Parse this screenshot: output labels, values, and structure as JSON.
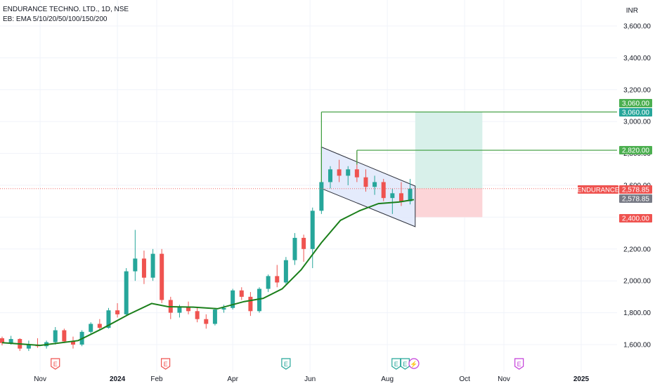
{
  "header": {
    "symbol_line": "ENDURANCE TECHNO. LTD., 1D, NSE",
    "indicator_line": "EB: EMA 5/10/20/50/100/150/200",
    "currency": "INR"
  },
  "colors": {
    "up": "#26a69a",
    "down": "#ef5350",
    "ema": "#1b7f1b",
    "target_line": "#3a9b3a",
    "channel_fill": "#dfe7fb",
    "channel_stroke": "#2a2e39",
    "profit_zone": "#d8f0ea",
    "loss_zone": "#fcd5d8",
    "earnings_red": "#ef5350",
    "earnings_teal": "#26a69a",
    "earnings_purple": "#c43ed9"
  },
  "chart_data": {
    "type": "candlestick",
    "symbol": "ENDURANCE",
    "timeframe": "1D",
    "exchange": "NSE",
    "currency": "INR",
    "ylim": [
      1500,
      3700
    ],
    "y_ticks": [
      "1,600.00",
      "1,800.00",
      "2,000.00",
      "2,200.00",
      "2,400.00",
      "2,600.00",
      "2,800.00",
      "3,000.00",
      "3,200.00",
      "3,400.00",
      "3,600.00"
    ],
    "y_tick_values": [
      1600,
      1800,
      2000,
      2200,
      2400,
      2600,
      2800,
      3000,
      3200,
      3400,
      3600
    ],
    "x_ticks": [
      "Nov",
      "2024",
      "Feb",
      "Apr",
      "Jun",
      "Aug",
      "Oct",
      "Nov",
      "2025"
    ],
    "x_tick_dates": [
      "2023-11-01",
      "2024-01-01",
      "2024-02-01",
      "2024-04-01",
      "2024-06-01",
      "2024-08-01",
      "2024-10-01",
      "2024-11-01",
      "2025-01-01"
    ],
    "series": [
      {
        "name": "EMA",
        "type": "line",
        "points": [
          [
            "2023-10-02",
            1612
          ],
          [
            "2023-11-01",
            1595
          ],
          [
            "2023-12-01",
            1625
          ],
          [
            "2023-12-20",
            1700
          ],
          [
            "2024-01-10",
            1790
          ],
          [
            "2024-01-28",
            1858
          ],
          [
            "2024-02-10",
            1838
          ],
          [
            "2024-03-01",
            1835
          ],
          [
            "2024-03-20",
            1825
          ],
          [
            "2024-04-10",
            1870
          ],
          [
            "2024-04-25",
            1890
          ],
          [
            "2024-05-10",
            1950
          ],
          [
            "2024-05-25",
            2070
          ],
          [
            "2024-06-10",
            2240
          ],
          [
            "2024-06-25",
            2380
          ],
          [
            "2024-07-10",
            2440
          ],
          [
            "2024-07-25",
            2485
          ],
          [
            "2024-08-10",
            2495
          ],
          [
            "2024-08-22",
            2510
          ]
        ]
      }
    ],
    "candles": [
      [
        "2023-10-02",
        1640,
        1650,
        1595,
        1610
      ],
      [
        "2023-10-09",
        1610,
        1655,
        1600,
        1635
      ],
      [
        "2023-10-16",
        1635,
        1640,
        1560,
        1575
      ],
      [
        "2023-10-23",
        1575,
        1625,
        1560,
        1600
      ],
      [
        "2023-10-30",
        1600,
        1640,
        1580,
        1590
      ],
      [
        "2023-11-06",
        1590,
        1625,
        1575,
        1615
      ],
      [
        "2023-11-13",
        1615,
        1710,
        1600,
        1690
      ],
      [
        "2023-11-20",
        1690,
        1700,
        1610,
        1620
      ],
      [
        "2023-11-27",
        1620,
        1650,
        1575,
        1600
      ],
      [
        "2023-12-04",
        1600,
        1690,
        1590,
        1680
      ],
      [
        "2023-12-11",
        1680,
        1740,
        1670,
        1730
      ],
      [
        "2023-12-18",
        1730,
        1760,
        1690,
        1705
      ],
      [
        "2023-12-25",
        1705,
        1830,
        1700,
        1815
      ],
      [
        "2024-01-01",
        1815,
        1860,
        1770,
        1790
      ],
      [
        "2024-01-08",
        1790,
        2080,
        1780,
        2060
      ],
      [
        "2024-01-15",
        2060,
        2320,
        2000,
        2140
      ],
      [
        "2024-01-22",
        2140,
        2190,
        1980,
        2020
      ],
      [
        "2024-01-29",
        2020,
        2200,
        2000,
        2170
      ],
      [
        "2024-02-05",
        2170,
        2200,
        1860,
        1880
      ],
      [
        "2024-02-12",
        1880,
        1900,
        1760,
        1800
      ],
      [
        "2024-02-19",
        1800,
        1850,
        1770,
        1835
      ],
      [
        "2024-02-26",
        1835,
        1870,
        1790,
        1810
      ],
      [
        "2024-03-04",
        1810,
        1830,
        1740,
        1760
      ],
      [
        "2024-03-11",
        1760,
        1790,
        1700,
        1730
      ],
      [
        "2024-03-18",
        1730,
        1830,
        1720,
        1820
      ],
      [
        "2024-03-25",
        1820,
        1850,
        1800,
        1830
      ],
      [
        "2024-04-01",
        1830,
        1950,
        1820,
        1940
      ],
      [
        "2024-04-08",
        1940,
        1960,
        1880,
        1900
      ],
      [
        "2024-04-15",
        1900,
        1930,
        1780,
        1810
      ],
      [
        "2024-04-22",
        1810,
        1960,
        1800,
        1950
      ],
      [
        "2024-04-29",
        1950,
        2040,
        1930,
        2030
      ],
      [
        "2024-05-06",
        2030,
        2100,
        1960,
        1990
      ],
      [
        "2024-05-13",
        1990,
        2150,
        1980,
        2130
      ],
      [
        "2024-05-20",
        2130,
        2300,
        2100,
        2270
      ],
      [
        "2024-05-27",
        2270,
        2290,
        2120,
        2200
      ],
      [
        "2024-06-03",
        2200,
        2460,
        2080,
        2440
      ],
      [
        "2024-06-10",
        2440,
        2640,
        2420,
        2620
      ],
      [
        "2024-06-17",
        2620,
        2720,
        2580,
        2700
      ],
      [
        "2024-06-24",
        2700,
        2760,
        2620,
        2660
      ],
      [
        "2024-07-01",
        2660,
        2720,
        2600,
        2700
      ],
      [
        "2024-07-08",
        2700,
        2810,
        2620,
        2650
      ],
      [
        "2024-07-15",
        2650,
        2700,
        2560,
        2590
      ],
      [
        "2024-07-22",
        2590,
        2660,
        2540,
        2620
      ],
      [
        "2024-07-29",
        2620,
        2640,
        2500,
        2520
      ],
      [
        "2024-08-05",
        2520,
        2580,
        2420,
        2550
      ],
      [
        "2024-08-12",
        2550,
        2620,
        2470,
        2500
      ],
      [
        "2024-08-19",
        2500,
        2640,
        2480,
        2578.85
      ]
    ],
    "channel": {
      "upper": [
        [
          "2024-06-10",
          2840
        ],
        [
          "2024-08-23",
          2595
        ]
      ],
      "lower": [
        [
          "2024-06-10",
          2580
        ],
        [
          "2024-08-23",
          2340
        ]
      ]
    },
    "annotations": {
      "target1": {
        "price": 3060,
        "label": "3,060.00",
        "from": "2024-06-10"
      },
      "target1b": {
        "label": "3,060.00"
      },
      "target2": {
        "price": 2820,
        "label": "2,820.00",
        "from": "2024-07-08"
      },
      "last_price": {
        "price": 2578.85,
        "label": "2,578.85",
        "tag": "ENDURANCE"
      },
      "last_price_b": {
        "label": "2,578.85"
      },
      "stop_loss": {
        "price": 2400,
        "label": "2,400.00"
      },
      "position": {
        "entry": 2578.85,
        "target": 3060,
        "stop": 2400,
        "start": "2024-08-23",
        "end": "2024-10-15"
      }
    },
    "events": [
      {
        "date": "2023-11-13",
        "glyph": "E",
        "kind": "earnings",
        "color": "red"
      },
      {
        "date": "2024-02-08",
        "glyph": "E",
        "kind": "earnings",
        "color": "red"
      },
      {
        "date": "2024-05-13",
        "glyph": "E",
        "kind": "earnings",
        "color": "teal"
      },
      {
        "date": "2024-08-08",
        "glyph": "E",
        "kind": "earnings",
        "color": "teal"
      },
      {
        "date": "2024-08-15",
        "glyph": "E",
        "kind": "earnings",
        "color": "teal"
      },
      {
        "date": "2024-08-22",
        "glyph": "⚡",
        "kind": "split",
        "color": "purple"
      },
      {
        "date": "2024-11-13",
        "glyph": "E",
        "kind": "earnings",
        "color": "purple"
      }
    ],
    "grid": true
  }
}
